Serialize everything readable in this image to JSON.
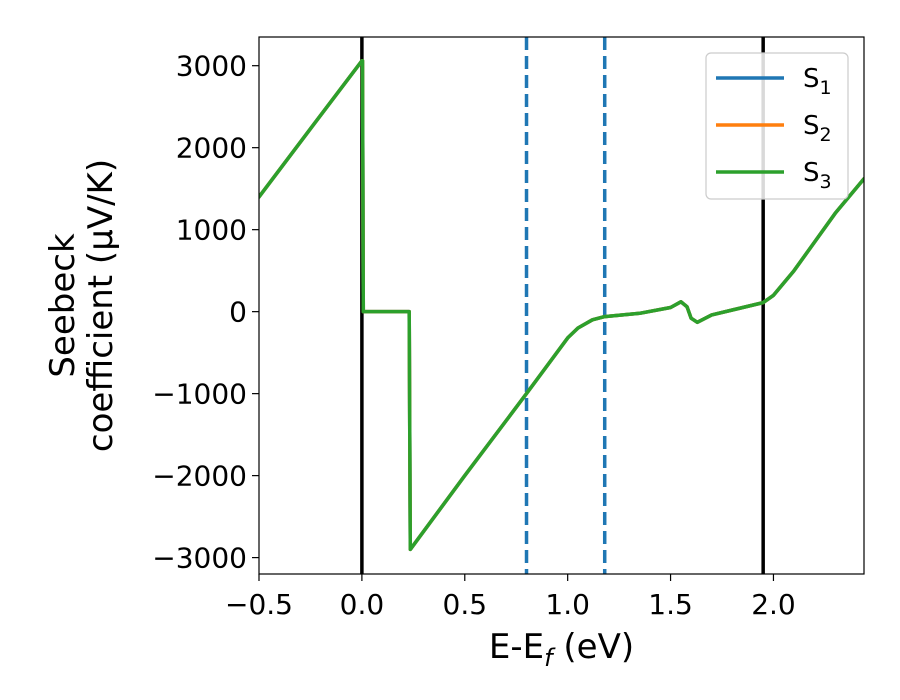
{
  "chart_data": {
    "type": "line",
    "xlabel": "E-E",
    "xlabel_sub": "f",
    "xlabel_unit": " (eV)",
    "ylabel_line1": "Seebeck",
    "ylabel_line2": "coefficient  (μV/K)",
    "xlim": [
      -0.5,
      2.44
    ],
    "ylim": [
      -3200,
      3350
    ],
    "x_ticks": [
      -0.5,
      0.0,
      0.5,
      1.0,
      1.5,
      2.0
    ],
    "x_tick_labels": [
      "−0.5",
      "0.0",
      "0.5",
      "1.0",
      "1.5",
      "2.0"
    ],
    "y_ticks": [
      3000,
      2000,
      1000,
      0,
      -1000,
      -2000,
      -3000
    ],
    "y_tick_labels": [
      "3000",
      "2000",
      "1000",
      "0",
      "−1000",
      "−2000",
      "−3000"
    ],
    "legend_position": "top-right",
    "grid": false,
    "vertical_lines": [
      {
        "x": 0.0,
        "style": "solid",
        "color": "#000000"
      },
      {
        "x": 0.8,
        "style": "dashed",
        "color": "#1f77b4"
      },
      {
        "x": 1.18,
        "style": "dashed",
        "color": "#1f77b4"
      },
      {
        "x": 1.95,
        "style": "solid",
        "color": "#000000"
      }
    ],
    "series": [
      {
        "name": "S",
        "sub": "1",
        "color": "#1f77b4",
        "x": [
          -0.5,
          -0.25,
          0.0,
          0.003,
          0.007,
          0.23,
          0.235,
          0.5,
          0.8,
          1.0,
          1.05,
          1.12,
          1.18,
          1.35,
          1.5,
          1.55,
          1.58,
          1.6,
          1.63,
          1.7,
          1.8,
          1.95,
          2.0,
          2.1,
          2.2,
          2.3,
          2.44
        ],
        "y": [
          1400,
          2230,
          3060,
          3060,
          0,
          0,
          -2900,
          -2000,
          -1000,
          -320,
          -200,
          -100,
          -60,
          -20,
          50,
          120,
          60,
          -80,
          -130,
          -40,
          20,
          110,
          200,
          500,
          850,
          1200,
          1620
        ]
      },
      {
        "name": "S",
        "sub": "2",
        "color": "#ff7f0e",
        "x": [
          -0.5,
          -0.25,
          0.0,
          0.003,
          0.007,
          0.23,
          0.235,
          0.5,
          0.8,
          1.0,
          1.05,
          1.12,
          1.18,
          1.35,
          1.5,
          1.55,
          1.58,
          1.6,
          1.63,
          1.7,
          1.8,
          1.95,
          2.0,
          2.1,
          2.2,
          2.3,
          2.44
        ],
        "y": [
          1400,
          2230,
          3060,
          3060,
          0,
          0,
          -2900,
          -2000,
          -1000,
          -320,
          -200,
          -100,
          -60,
          -20,
          50,
          120,
          60,
          -80,
          -130,
          -40,
          20,
          110,
          200,
          500,
          850,
          1200,
          1620
        ]
      },
      {
        "name": "S",
        "sub": "3",
        "color": "#2ca02c",
        "x": [
          -0.5,
          -0.25,
          0.0,
          0.003,
          0.007,
          0.23,
          0.235,
          0.5,
          0.8,
          1.0,
          1.05,
          1.12,
          1.18,
          1.35,
          1.5,
          1.55,
          1.58,
          1.6,
          1.63,
          1.7,
          1.8,
          1.95,
          2.0,
          2.1,
          2.2,
          2.3,
          2.44
        ],
        "y": [
          1400,
          2230,
          3060,
          3060,
          0,
          0,
          -2900,
          -2000,
          -1000,
          -320,
          -200,
          -100,
          -60,
          -20,
          50,
          120,
          60,
          -80,
          -130,
          -40,
          20,
          110,
          200,
          500,
          850,
          1200,
          1620
        ]
      }
    ]
  }
}
